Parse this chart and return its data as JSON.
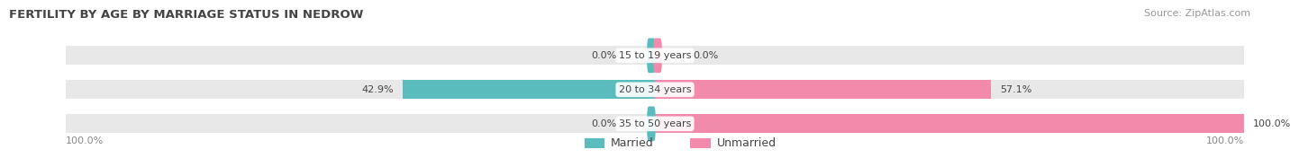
{
  "title": "FERTILITY BY AGE BY MARRIAGE STATUS IN NEDROW",
  "source": "Source: ZipAtlas.com",
  "categories": [
    "15 to 19 years",
    "20 to 34 years",
    "35 to 50 years"
  ],
  "married_values": [
    0.0,
    42.9,
    0.0
  ],
  "unmarried_values": [
    0.0,
    57.1,
    100.0
  ],
  "married_color": "#5bbcbd",
  "unmarried_color": "#f28bab",
  "bar_bg_color": "#e8e8e8",
  "legend_married": "Married",
  "legend_unmarried": "Unmarried",
  "title_fontsize": 9.5,
  "source_fontsize": 8,
  "label_fontsize": 8,
  "category_fontsize": 8,
  "bottom_left_label": "100.0%",
  "bottom_right_label": "100.0%"
}
